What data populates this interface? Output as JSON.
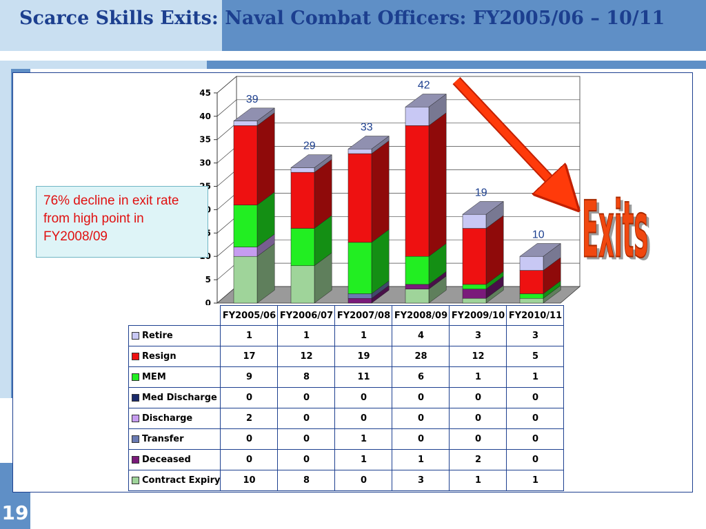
{
  "slide": {
    "title": "Scarce Skills Exits: Naval Combat Officers: FY2005/06 – 10/11",
    "page_number": "19",
    "callout": "76% decline in exit rate from high point in FY2008/09",
    "exits_label": "Exits"
  },
  "chart_data": {
    "type": "bar",
    "stacked": true,
    "three_d": true,
    "categories": [
      "FY2005/06",
      "FY2006/07",
      "FY2007/08",
      "FY2008/09",
      "FY2009/10",
      "FY2010/11"
    ],
    "ylim": [
      0,
      45
    ],
    "yticks": [
      0,
      5,
      10,
      15,
      20,
      25,
      30,
      35,
      40,
      45
    ],
    "totals": [
      39,
      29,
      33,
      42,
      19,
      10
    ],
    "series": [
      {
        "name": "Contract Expiry",
        "values": [
          10,
          8,
          0,
          3,
          1,
          1
        ],
        "color": "#9fd49a"
      },
      {
        "name": "Deceased",
        "values": [
          0,
          0,
          1,
          1,
          2,
          0
        ],
        "color": "#7a1a7a"
      },
      {
        "name": "Transfer",
        "values": [
          0,
          0,
          1,
          0,
          0,
          0
        ],
        "color": "#6a7ab2"
      },
      {
        "name": "Discharge",
        "values": [
          2,
          0,
          0,
          0,
          0,
          0
        ],
        "color": "#c69cf0"
      },
      {
        "name": "Med Discharge",
        "values": [
          0,
          0,
          0,
          0,
          0,
          0
        ],
        "color": "#1a2a6a"
      },
      {
        "name": "MEM",
        "values": [
          9,
          8,
          11,
          6,
          1,
          1
        ],
        "color": "#22ee22"
      },
      {
        "name": "Resign",
        "values": [
          17,
          12,
          19,
          28,
          12,
          5
        ],
        "color": "#ee1111"
      },
      {
        "name": "Retire",
        "values": [
          1,
          1,
          1,
          4,
          3,
          3
        ],
        "color": "#c8c8f4"
      }
    ],
    "table_row_order": [
      "Retire",
      "Resign",
      "MEM",
      "Med Discharge",
      "Discharge",
      "Transfer",
      "Deceased",
      "Contract Expiry"
    ],
    "grid": true
  }
}
